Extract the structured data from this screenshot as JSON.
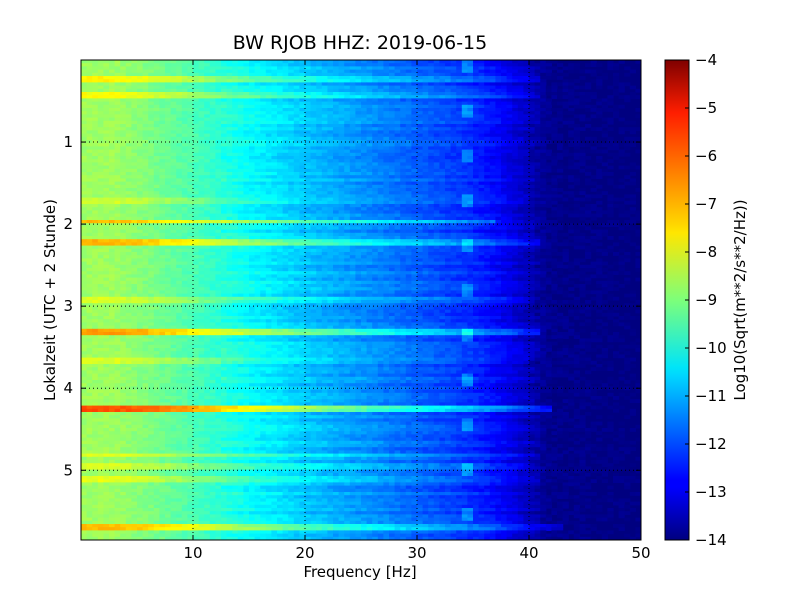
{
  "chart_data": {
    "type": "heatmap",
    "title": "BW RJOB HHZ: 2019-06-15",
    "xlabel": "Frequency [Hz]",
    "ylabel": "Lokalzeit (UTC + 2 Stunde)",
    "xlim": [
      0,
      50
    ],
    "ylim": [
      0,
      5.85
    ],
    "y_inverted": true,
    "grid": true,
    "grid_style": "dotted",
    "xticks": [
      10,
      20,
      30,
      40,
      50
    ],
    "yticks": [
      1,
      2,
      3,
      4,
      5
    ],
    "colormap": "jet",
    "colorbar": {
      "label": "Log10(Sqrt(m**2/s**2/Hz))",
      "range": [
        -14,
        -4
      ],
      "ticks": [
        -4,
        -5,
        -6,
        -7,
        -8,
        -9,
        -10,
        -11,
        -12,
        -13,
        -14
      ]
    },
    "value_profile_by_frequency": {
      "frequency_hz": [
        0.5,
        3,
        6,
        10,
        15,
        20,
        25,
        30,
        33,
        36,
        38,
        40,
        41,
        42,
        50
      ],
      "log10_amplitude": [
        -8.7,
        -8.7,
        -9.0,
        -9.5,
        -10.2,
        -10.8,
        -11.3,
        -11.8,
        -12.1,
        -12.5,
        -12.9,
        -13.4,
        -13.7,
        -13.9,
        -14.0
      ]
    },
    "bright_bands": [
      {
        "time": 0.2,
        "boost": 1.0,
        "fmax": 41
      },
      {
        "time": 0.42,
        "boost": 0.9,
        "fmax": 41
      },
      {
        "time": 1.7,
        "boost": 0.5,
        "fmax": 40
      },
      {
        "time": 1.95,
        "boost": 1.6,
        "fmax": 37
      },
      {
        "time": 2.2,
        "boost": 1.7,
        "fmax": 41
      },
      {
        "time": 2.9,
        "boost": 0.6,
        "fmax": 40
      },
      {
        "time": 3.3,
        "boost": 1.9,
        "fmax": 41
      },
      {
        "time": 3.65,
        "boost": 0.6,
        "fmax": 40
      },
      {
        "time": 4.22,
        "boost": 2.7,
        "fmax": 42
      },
      {
        "time": 4.8,
        "boost": 0.7,
        "fmax": 41
      },
      {
        "time": 4.92,
        "boost": 0.6,
        "fmax": 40
      },
      {
        "time": 5.1,
        "boost": 0.7,
        "fmax": 41
      },
      {
        "time": 5.68,
        "boost": 1.6,
        "fmax": 43
      }
    ],
    "tonal_line_hz": 34.3
  }
}
